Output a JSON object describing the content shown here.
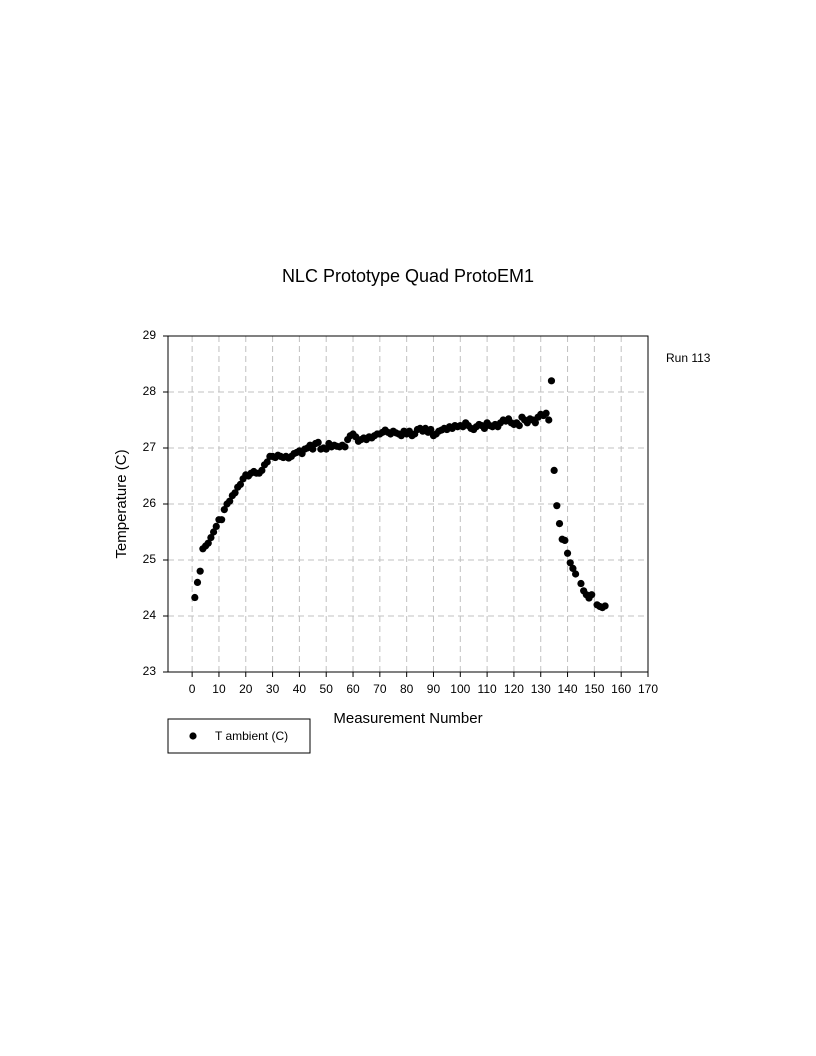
{
  "chart_data": {
    "type": "scatter",
    "title": "NLC Prototype Quad ProtoEM1",
    "x_label": "Measurement Number",
    "y_label": "Temperature (C)",
    "annotation": "Run 113",
    "xlim": [
      -9,
      170
    ],
    "xticks": [
      0,
      10,
      20,
      30,
      40,
      50,
      60,
      70,
      80,
      90,
      100,
      110,
      120,
      130,
      140,
      150,
      160,
      170
    ],
    "ylim": [
      23,
      29
    ],
    "yticks": [
      23,
      24,
      25,
      26,
      27,
      28,
      29
    ],
    "grid": true,
    "legend": "below-left",
    "series": [
      {
        "name": "T ambient (C)",
        "color": "#000000",
        "x": [
          1,
          2,
          3,
          4,
          5,
          6,
          7,
          8,
          9,
          10,
          11,
          12,
          13,
          14,
          15,
          16,
          17,
          18,
          19,
          20,
          21,
          22,
          23,
          24,
          25,
          26,
          27,
          28,
          29,
          30,
          31,
          32,
          33,
          34,
          35,
          36,
          37,
          38,
          39,
          40,
          41,
          42,
          43,
          44,
          45,
          46,
          47,
          48,
          49,
          50,
          51,
          52,
          53,
          54,
          55,
          56,
          57,
          58,
          59,
          60,
          61,
          62,
          63,
          64,
          65,
          66,
          67,
          68,
          69,
          70,
          71,
          72,
          73,
          74,
          75,
          76,
          77,
          78,
          79,
          80,
          81,
          82,
          83,
          84,
          85,
          86,
          87,
          88,
          89,
          90,
          91,
          92,
          93,
          94,
          95,
          96,
          97,
          98,
          99,
          100,
          101,
          102,
          103,
          104,
          105,
          106,
          107,
          108,
          109,
          110,
          111,
          112,
          113,
          114,
          115,
          116,
          117,
          118,
          119,
          120,
          121,
          122,
          123,
          124,
          125,
          126,
          127,
          128,
          129,
          130,
          131,
          132,
          133,
          134,
          135,
          136,
          137,
          138,
          139,
          140,
          141,
          142,
          143,
          145,
          146,
          147,
          148,
          149,
          151,
          152,
          153,
          154
        ],
        "values": [
          24.33,
          24.6,
          24.8,
          25.2,
          25.25,
          25.3,
          25.4,
          25.5,
          25.6,
          25.72,
          25.72,
          25.9,
          26.0,
          26.05,
          26.15,
          26.2,
          26.3,
          26.35,
          26.45,
          26.52,
          26.5,
          26.55,
          26.58,
          26.55,
          26.55,
          26.6,
          26.7,
          26.75,
          26.85,
          26.85,
          26.83,
          26.87,
          26.85,
          26.83,
          26.85,
          26.82,
          26.85,
          26.9,
          26.92,
          26.95,
          26.9,
          26.98,
          27.0,
          27.05,
          26.98,
          27.08,
          27.1,
          26.98,
          27.0,
          26.98,
          27.08,
          27.02,
          27.05,
          27.03,
          27.02,
          27.05,
          27.02,
          27.15,
          27.22,
          27.25,
          27.2,
          27.12,
          27.15,
          27.18,
          27.15,
          27.2,
          27.18,
          27.22,
          27.25,
          27.25,
          27.28,
          27.32,
          27.28,
          27.25,
          27.3,
          27.27,
          27.25,
          27.22,
          27.3,
          27.25,
          27.3,
          27.22,
          27.25,
          27.33,
          27.35,
          27.3,
          27.35,
          27.28,
          27.33,
          27.22,
          27.25,
          27.3,
          27.32,
          27.35,
          27.33,
          27.38,
          27.35,
          27.4,
          27.38,
          27.4,
          27.38,
          27.45,
          27.4,
          27.35,
          27.33,
          27.38,
          27.42,
          27.4,
          27.35,
          27.45,
          27.4,
          27.38,
          27.42,
          27.38,
          27.45,
          27.5,
          27.48,
          27.52,
          27.45,
          27.42,
          27.45,
          27.4,
          27.55,
          27.5,
          27.45,
          27.52,
          27.5,
          27.45,
          27.55,
          27.6,
          27.58,
          27.62,
          27.5,
          28.2,
          26.6,
          25.97,
          25.65,
          25.37,
          25.35,
          25.12,
          24.95,
          24.85,
          24.75,
          24.58,
          24.45,
          24.38,
          24.32,
          24.38,
          24.2,
          24.17,
          24.15,
          24.18
        ]
      }
    ]
  }
}
